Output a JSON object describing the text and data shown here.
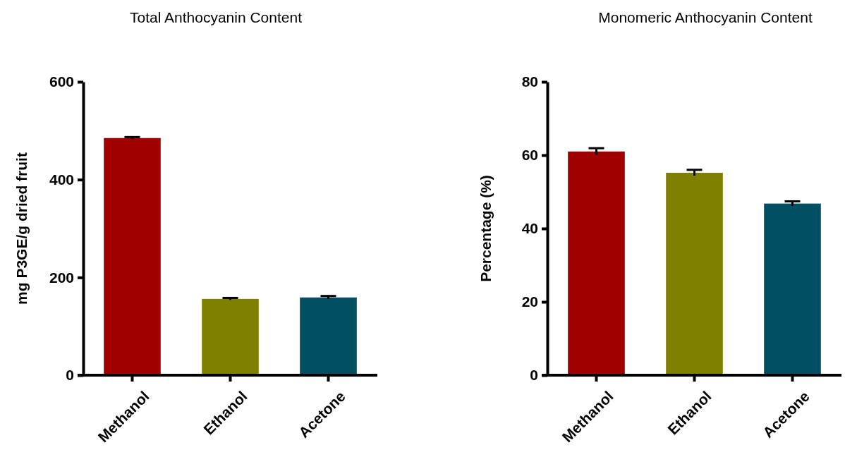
{
  "chart_data": [
    {
      "type": "bar",
      "title": "Total Anthocyanin Content",
      "ylabel": "mg P3GE/g dried fruit",
      "categories": [
        "Methanol",
        "Ethanol",
        "Acetone"
      ],
      "values": [
        485,
        156,
        159
      ],
      "errors": [
        2,
        2,
        3
      ],
      "colors": [
        "#a00000",
        "#808000",
        "#014f63"
      ],
      "ylim": [
        0,
        600
      ],
      "yticks": [
        0,
        200,
        400,
        600
      ],
      "grid": false
    },
    {
      "type": "bar",
      "title": "Monomeric Anthocyanin Content",
      "ylabel": "Percentage (%)",
      "categories": [
        "Methanol",
        "Ethanol",
        "Acetone"
      ],
      "values": [
        61.0,
        55.2,
        46.8
      ],
      "errors": [
        0.9,
        0.8,
        0.6
      ],
      "colors": [
        "#a00000",
        "#808000",
        "#014f63"
      ],
      "ylim": [
        0,
        80
      ],
      "yticks": [
        0,
        20,
        40,
        60,
        80
      ],
      "grid": false
    }
  ]
}
